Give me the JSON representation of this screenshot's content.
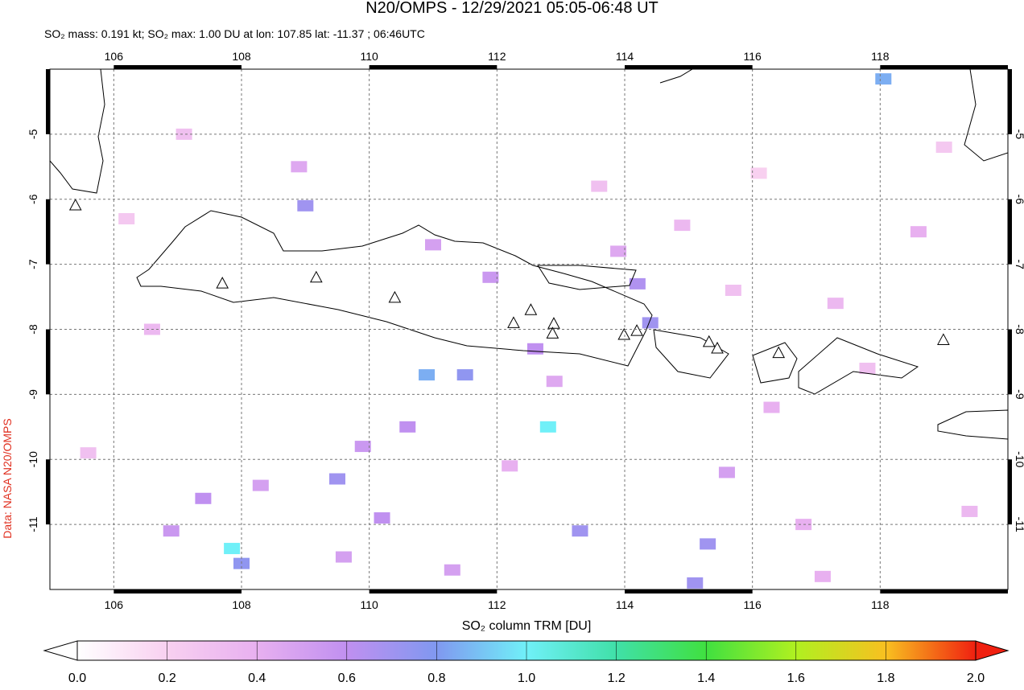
{
  "chart_data": {
    "type": "map",
    "title": "N20/OMPS - 12/29/2021 05:05-06:48 UT",
    "subtitle": "SO₂ mass: 0.191 kt; SO₂ max: 1.00 DU at lon: 107.85 lat: -11.37 ; 06:46UTC",
    "credit": "Data: NASA N20/OMPS",
    "xlim": [
      105,
      120
    ],
    "ylim": [
      -12,
      -4
    ],
    "xticks": [
      106,
      108,
      110,
      112,
      114,
      116,
      118
    ],
    "yticks": [
      -5,
      -6,
      -7,
      -8,
      -9,
      -10,
      -11
    ],
    "grid": true,
    "colorbar": {
      "label": "SO₂ column TRM [DU]",
      "lim": [
        0,
        2
      ],
      "ticks": [
        {
          "value": 0,
          "label": "0.0"
        },
        {
          "value": 0.2,
          "label": "0.2"
        },
        {
          "value": 0.4,
          "label": "0.4"
        },
        {
          "value": 0.6,
          "label": "0.6"
        },
        {
          "value": 0.8,
          "label": "0.8"
        },
        {
          "value": 1,
          "label": "1.0"
        },
        {
          "value": 1.2,
          "label": "1.2"
        },
        {
          "value": 1.4,
          "label": "1.4"
        },
        {
          "value": 1.6,
          "label": "1.6"
        },
        {
          "value": 1.8,
          "label": "1.8"
        },
        {
          "value": 2,
          "label": "2.0"
        }
      ],
      "colors": [
        "#ffffff",
        "#f8d0f0",
        "#e8b0f0",
        "#c090f0",
        "#8098f0",
        "#70f0f8",
        "#40e0a8",
        "#40e040",
        "#b0f020",
        "#f8c020",
        "#f02010"
      ]
    },
    "pixels": {
      "lon": [
        110.9,
        111.5,
        112.8,
        118.05,
        107.85,
        109.0,
        114.2,
        114.4,
        115.3,
        115.1,
        108.0,
        113.3,
        109.5,
        110.6,
        111.9,
        112.6,
        106.9,
        107.4,
        108.3,
        109.9,
        113.9,
        115.6,
        116.3,
        117.3,
        118.6,
        119.4,
        105.6,
        106.6,
        108.9,
        110.2,
        111.3,
        112.2,
        113.6,
        114.9,
        116.8,
        117.8,
        119.0,
        107.1,
        109.6,
        112.9,
        115.7,
        111.0,
        106.2,
        116.1,
        117.1
      ],
      "lat": [
        -8.7,
        -8.7,
        -9.5,
        -4.15,
        -11.37,
        -6.1,
        -7.3,
        -7.9,
        -11.3,
        -11.9,
        -11.6,
        -11.1,
        -10.3,
        -9.5,
        -7.2,
        -8.3,
        -11.1,
        -10.6,
        -10.4,
        -9.8,
        -6.8,
        -10.2,
        -9.2,
        -7.6,
        -6.5,
        -10.8,
        -9.9,
        -8.0,
        -5.5,
        -10.9,
        -11.7,
        -10.1,
        -5.8,
        -6.4,
        -11.0,
        -8.6,
        -5.2,
        -5.0,
        -11.5,
        -8.8,
        -7.4,
        -6.7,
        -6.3,
        -5.6,
        -11.8
      ],
      "values": [
        0.85,
        0.75,
        1.0,
        0.85,
        1.0,
        0.7,
        0.65,
        0.7,
        0.7,
        0.7,
        0.75,
        0.7,
        0.7,
        0.6,
        0.55,
        0.6,
        0.55,
        0.6,
        0.5,
        0.55,
        0.45,
        0.5,
        0.4,
        0.35,
        0.4,
        0.35,
        0.3,
        0.35,
        0.45,
        0.6,
        0.5,
        0.4,
        0.3,
        0.35,
        0.4,
        0.3,
        0.25,
        0.3,
        0.5,
        0.45,
        0.3,
        0.5,
        0.25,
        0.2,
        0.4
      ]
    },
    "volcanoes": {
      "lon": [
        107.7,
        109.17,
        110.4,
        112.26,
        112.53,
        112.89,
        112.87,
        113.99,
        114.19,
        115.32,
        115.45,
        116.41,
        118.99,
        105.4
      ],
      "lat": [
        -7.29,
        -7.2,
        -7.51,
        -7.9,
        -7.7,
        -7.91,
        -8.06,
        -8.08,
        -8.02,
        -8.19,
        -8.29,
        -8.36,
        -8.16,
        -6.09
      ]
    }
  }
}
